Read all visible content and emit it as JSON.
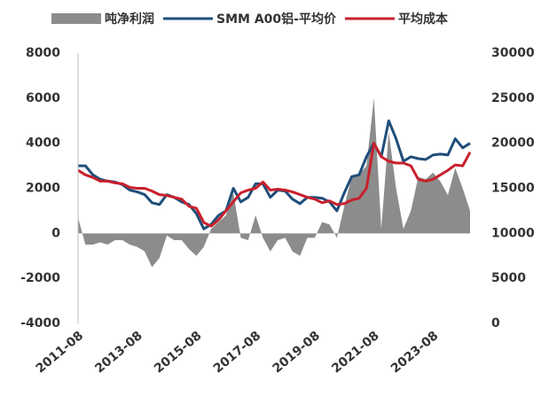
{
  "chart_data": {
    "type": "line",
    "categories": [
      "2011-08",
      null,
      null,
      null,
      null,
      null,
      null,
      null,
      "2013-08",
      null,
      null,
      null,
      null,
      null,
      null,
      null,
      "2015-08",
      null,
      null,
      null,
      null,
      null,
      null,
      null,
      "2017-08",
      null,
      null,
      null,
      null,
      null,
      null,
      null,
      "2019-08",
      null,
      null,
      null,
      null,
      null,
      null,
      null,
      "2021-08",
      null,
      null,
      null,
      null,
      null,
      null,
      null,
      "2023-08",
      null,
      null,
      null,
      null,
      null
    ],
    "series": [
      {
        "name": "吨净利润",
        "type": "area",
        "color": "#8c8c8c",
        "axis": "y",
        "values": [
          700,
          -500,
          -500,
          -400,
          -500,
          -300,
          -300,
          -500,
          -600,
          -800,
          -1500,
          -1100,
          -100,
          -300,
          -300,
          -700,
          -1000,
          -600,
          200,
          500,
          800,
          1800,
          -200,
          -300,
          800,
          -200,
          -800,
          -300,
          -200,
          -800,
          -1000,
          -200,
          -200,
          500,
          400,
          -200,
          1200,
          2500,
          2600,
          3000,
          6000,
          200,
          4500,
          2000,
          200,
          1000,
          2500,
          2400,
          2700,
          2300,
          1700,
          2900,
          2000,
          1000
        ]
      },
      {
        "name": "SMM A00铝-平均价",
        "type": "line",
        "color": "#1f4e79",
        "axis": "y2",
        "values": [
          17500,
          17500,
          16500,
          16000,
          15800,
          15700,
          15400,
          14800,
          14600,
          14300,
          13400,
          13200,
          14300,
          14000,
          13500,
          13200,
          12200,
          10500,
          11000,
          12000,
          12500,
          15000,
          13500,
          14000,
          15500,
          15500,
          14000,
          14800,
          14700,
          13800,
          13300,
          14000,
          14000,
          13900,
          13500,
          12500,
          14500,
          16300,
          16500,
          18500,
          20000,
          18500,
          22500,
          20500,
          18000,
          18500,
          18300,
          18200,
          18700,
          18800,
          18700,
          20500,
          19500,
          20000
        ]
      },
      {
        "name": "平均成本",
        "type": "line",
        "color": "#c8202c",
        "axis": "y2",
        "values": [
          17000,
          16500,
          16200,
          15800,
          15800,
          15600,
          15500,
          15100,
          15000,
          15000,
          14700,
          14300,
          14200,
          14000,
          13800,
          13000,
          12800,
          11200,
          10800,
          11500,
          12500,
          13500,
          14500,
          14800,
          15000,
          15700,
          14800,
          14900,
          14800,
          14600,
          14300,
          14000,
          13800,
          13400,
          13600,
          13200,
          13300,
          13700,
          13900,
          15000,
          20000,
          18500,
          18000,
          17800,
          17800,
          17500,
          16000,
          15800,
          16000,
          16500,
          17000,
          17600,
          17500,
          19000
        ]
      }
    ],
    "ylim": [
      -4000,
      8000
    ],
    "yticks": [
      -4000,
      -2000,
      0,
      2000,
      4000,
      6000,
      8000
    ],
    "y2lim": [
      0,
      30000
    ],
    "y2ticks": [
      0,
      5000,
      10000,
      15000,
      20000,
      25000,
      30000
    ],
    "legend": "top"
  }
}
